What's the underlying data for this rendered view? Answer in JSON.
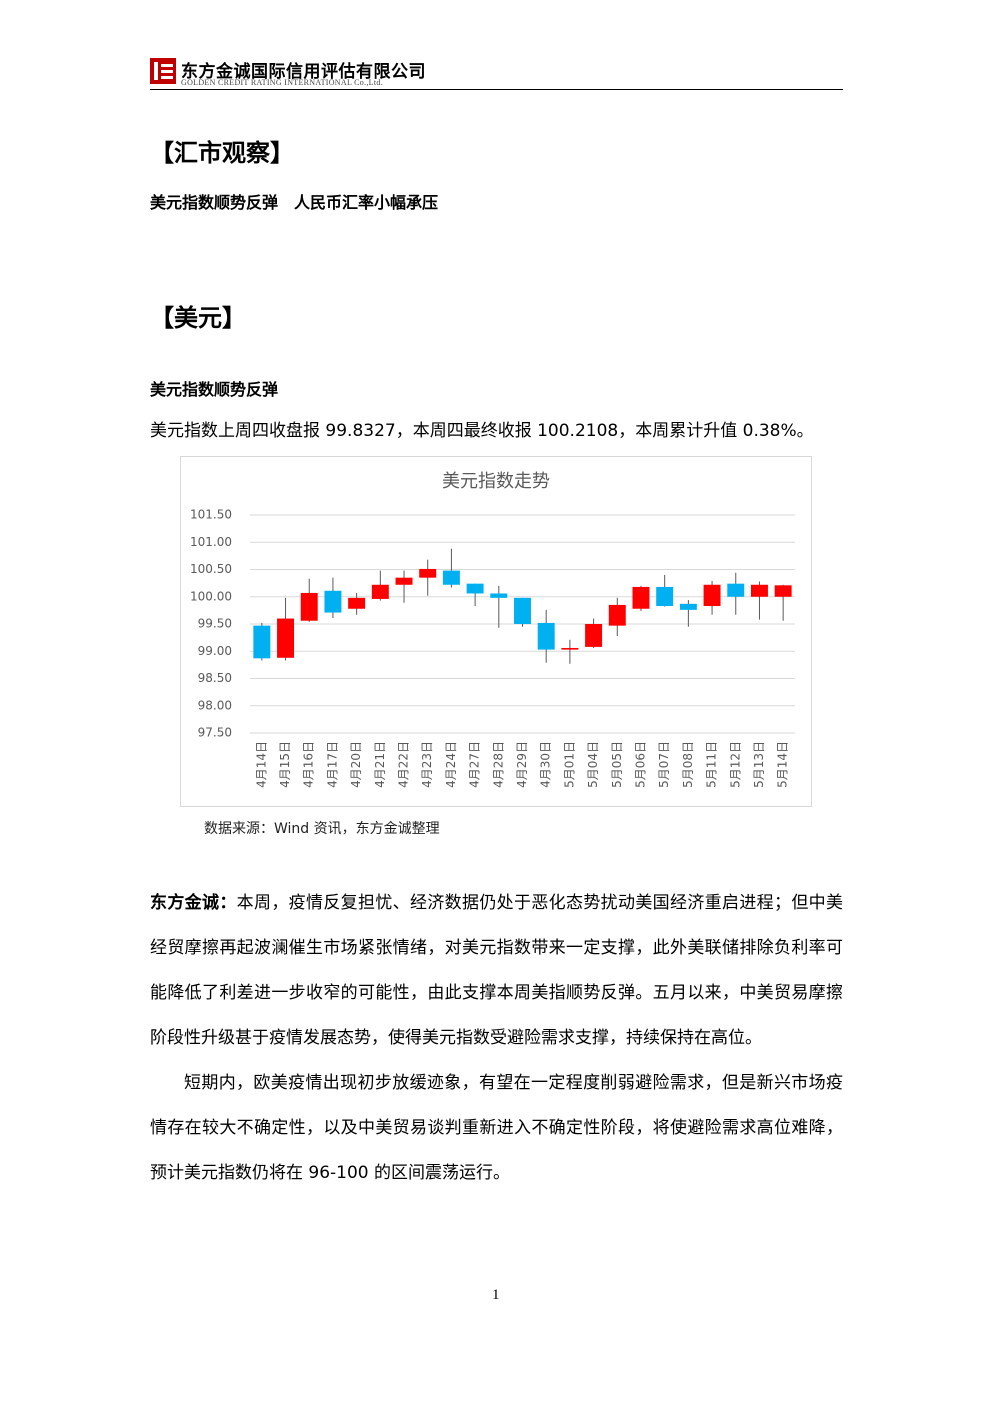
{
  "header": {
    "company": "东方金诚国际信用评估有限公司",
    "company_en": "GOLDEN CREDIT RATING INTERNATIONAL Co.,Ltd."
  },
  "section": "【汇市观察】",
  "headline": "美元指数顺势反弹　人民币汇率小幅承压",
  "subsection": "【美元】",
  "subheadline": "美元指数顺势反弹",
  "summary": "美元指数上周四收盘报 99.8327，本周四最终收报 100.2108，本周累计升值 0.38%。",
  "chart_data": {
    "type": "candlestick",
    "title": "美元指数走势",
    "categories": [
      "4月14日",
      "4月15日",
      "4月16日",
      "4月17日",
      "4月20日",
      "4月21日",
      "4月22日",
      "4月23日",
      "4月24日",
      "4月27日",
      "4月28日",
      "4月29日",
      "4月30日",
      "5月01日",
      "5月04日",
      "5月05日",
      "5月06日",
      "5月07日",
      "5月08日",
      "5月11日",
      "5月12日",
      "5月13日",
      "5月14日"
    ],
    "open": [
      99.47,
      98.88,
      99.56,
      100.11,
      99.78,
      99.96,
      100.22,
      100.35,
      100.48,
      100.24,
      100.06,
      99.98,
      99.52,
      99.03,
      99.08,
      99.47,
      99.78,
      100.18,
      99.87,
      99.83,
      100.24,
      100.0,
      100.0
    ],
    "high": [
      99.52,
      99.98,
      100.33,
      100.35,
      100.07,
      100.48,
      100.48,
      100.68,
      100.88,
      100.24,
      100.2,
      99.98,
      99.76,
      99.21,
      99.6,
      99.98,
      100.2,
      100.4,
      99.94,
      100.29,
      100.44,
      100.28,
      100.22
    ],
    "low": [
      98.83,
      98.83,
      99.54,
      99.61,
      99.67,
      99.93,
      99.89,
      100.02,
      100.17,
      99.83,
      99.43,
      99.45,
      98.79,
      98.77,
      99.06,
      99.28,
      99.74,
      99.82,
      99.45,
      99.67,
      99.67,
      99.58,
      99.56
    ],
    "close": [
      98.87,
      99.6,
      100.07,
      99.71,
      99.98,
      100.22,
      100.35,
      100.51,
      100.22,
      100.06,
      99.98,
      99.5,
      99.03,
      99.06,
      99.5,
      99.85,
      100.18,
      99.83,
      99.76,
      100.22,
      100.0,
      100.22,
      100.21
    ],
    "up_color": "#ff0000",
    "down_color": "#00b0f0",
    "ylim": [
      97.5,
      101.5
    ],
    "yticks": [
      {
        "value": 97.5,
        "label": "97.50"
      },
      {
        "value": 98,
        "label": "98.00"
      },
      {
        "value": 98.5,
        "label": "98.50"
      },
      {
        "value": 99,
        "label": "99.00"
      },
      {
        "value": 99.5,
        "label": "99.50"
      },
      {
        "value": 100,
        "label": "100.00"
      },
      {
        "value": 100.5,
        "label": "100.50"
      },
      {
        "value": 101,
        "label": "101.00"
      },
      {
        "value": 101.5,
        "label": "101.50"
      }
    ],
    "grid": true
  },
  "source": "数据来源：Wind 资讯，东方金诚整理",
  "paragraphs": [
    {
      "lead": "东方金诚：",
      "lines": [
        "本周，疫情反复担忧、经济数据仍处于恶化态势扰动美国经济重启进程；但中美",
        "经贸摩擦再起波澜催生市场紧张情绪，对美元指数带来一定支撑，此外美联储排除负利率可",
        "能降低了利差进一步收窄的可能性，由此支撑本周美指顺势反弹。五月以来，中美贸易摩擦",
        "阶段性升级甚于疫情发展态势，使得美元指数受避险需求支撑，持续保持在高位。"
      ]
    },
    {
      "lines": [
        "短期内，欧美疫情出现初步放缓迹象，有望在一定程度削弱避险需求，但是新兴市场疫",
        "情存在较大不确定性，以及中美贸易谈判重新进入不确定性阶段，将使避险需求高位难降，",
        "预计美元指数仍将在 96-100 的区间震荡运行。"
      ]
    }
  ],
  "page_number": "1"
}
